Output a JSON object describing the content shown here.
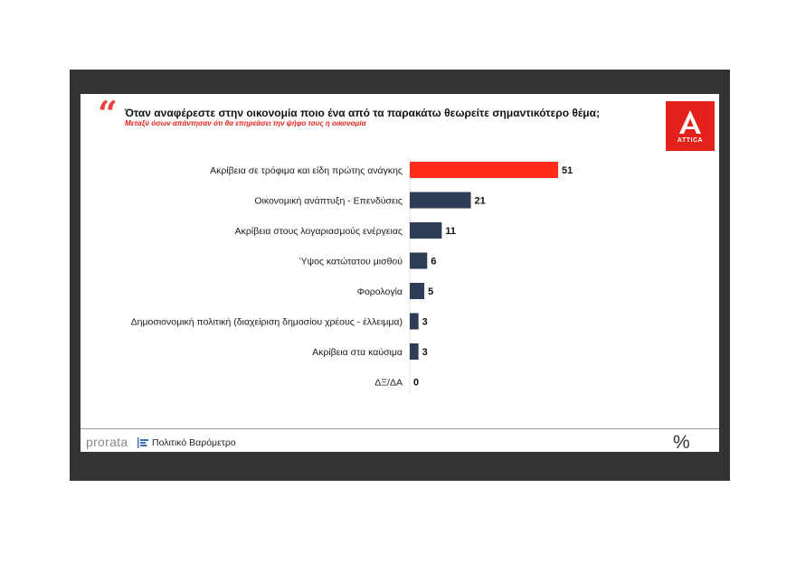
{
  "header": {
    "question": "Όταν αναφέρεστε στην οικονομία ποιο ένα από τα παρακάτω θεωρείτε σημαντικότερο θέμα;",
    "subtitle": "Μεταξύ όσων απάντησαν ότι θα επηρεάσει την ψήφο τους η οικονομία",
    "quote_mark": "“"
  },
  "logo": {
    "text": "ATTICA",
    "color": "#e3231b"
  },
  "footer": {
    "brand": "prorata",
    "label": "Πολιτικό Βαρόμετρο",
    "icon": "percent-icon",
    "icon_glyph": "%"
  },
  "colors": {
    "highlight": "#ff2a1a",
    "bar": "#2e3c58",
    "frame": "#333333"
  },
  "chart_data": {
    "type": "bar",
    "orientation": "horizontal",
    "title": "Όταν αναφέρεστε στην οικονομία ποιο ένα από τα παρακάτω θεωρείτε σημαντικότερο θέμα;",
    "categories": [
      "Ακρίβεια σε τρόφιμα και είδη πρώτης ανάγκης",
      "Οικονομική ανάπτυξη - Επενδύσεις",
      "Ακρίβεια στους λογαριασμούς ενέργειας",
      "Ύψος κατώτατου μισθού",
      "Φορολογία",
      "Δημοσιονομική πολιτική (διαχείριση δημοσίου χρέους - έλλειμμα)",
      "Ακρίβεια στα καύσιμα",
      "ΔΞ/ΔΑ"
    ],
    "values": [
      51,
      21,
      11,
      6,
      5,
      3,
      3,
      0
    ],
    "highlight_index": 0,
    "xlim": [
      0,
      51
    ],
    "xlabel": "",
    "ylabel": "",
    "grid": false
  }
}
